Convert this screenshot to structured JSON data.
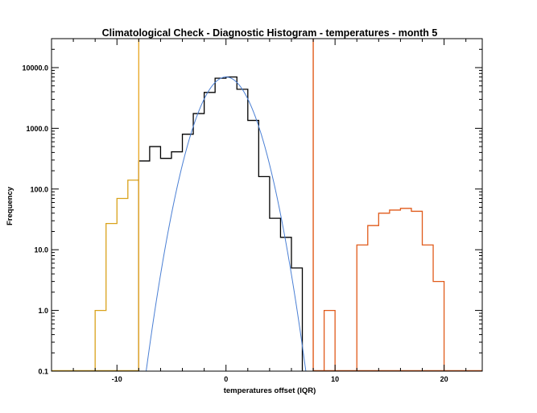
{
  "chart_data": {
    "type": "histogram",
    "title": "Climatological Check - Diagnostic Histogram - temperatures - month 5",
    "xlabel": "temperatures offset (IQR)",
    "ylabel": "Frequency",
    "xlim": [
      -16,
      23.5
    ],
    "ylim": [
      0.1,
      30000
    ],
    "yscale": "log",
    "grid": false,
    "x_ticks": [
      {
        "value": -10,
        "label": "-10"
      },
      {
        "value": 0,
        "label": "0"
      },
      {
        "value": 10,
        "label": "10"
      },
      {
        "value": 20,
        "label": "20"
      }
    ],
    "y_ticks": [
      {
        "value": 0.1,
        "label": "0.1"
      },
      {
        "value": 1,
        "label": "1.0"
      },
      {
        "value": 10,
        "label": "10.0"
      },
      {
        "value": 100,
        "label": "100.0"
      },
      {
        "value": 1000,
        "label": "1000.0"
      },
      {
        "value": 10000,
        "label": "10000.0"
      }
    ],
    "bin_width": 1,
    "series": [
      {
        "color": "#d9a21b",
        "bins": [
          {
            "left": -12,
            "value": 1
          },
          {
            "left": -11,
            "value": 27
          },
          {
            "left": -10,
            "value": 70
          },
          {
            "left": -9,
            "value": 140
          }
        ]
      },
      {
        "color": "#000000",
        "bins": [
          {
            "left": -8,
            "value": 290
          },
          {
            "left": -7,
            "value": 500
          },
          {
            "left": -6,
            "value": 320
          },
          {
            "left": -5,
            "value": 410
          },
          {
            "left": -4,
            "value": 800
          },
          {
            "left": -3,
            "value": 1750
          },
          {
            "left": -2,
            "value": 3900
          },
          {
            "left": -1,
            "value": 6700
          },
          {
            "left": 0,
            "value": 7000
          },
          {
            "left": 1,
            "value": 4400
          },
          {
            "left": 2,
            "value": 1350
          },
          {
            "left": 3,
            "value": 160
          },
          {
            "left": 4,
            "value": 33
          },
          {
            "left": 5,
            "value": 16
          },
          {
            "left": 6,
            "value": 5
          }
        ]
      },
      {
        "color": "#e05a1a",
        "bins": [
          {
            "left": 9,
            "value": 1
          },
          {
            "left": 12,
            "value": 12
          },
          {
            "left": 13,
            "value": 25
          },
          {
            "left": 14,
            "value": 40
          },
          {
            "left": 15,
            "value": 45
          },
          {
            "left": 16,
            "value": 48
          },
          {
            "left": 17,
            "value": 43
          },
          {
            "left": 18,
            "value": 12
          },
          {
            "left": 19,
            "value": 3
          }
        ]
      }
    ],
    "gaussian_fit": {
      "color": "#4a7fd4",
      "amplitude": 7000,
      "mean": 0,
      "sigma": 1.55
    },
    "threshold_lines": [
      {
        "x": -8,
        "color": "#e8a92a"
      },
      {
        "x": 8,
        "color": "#e05a1a"
      }
    ]
  }
}
